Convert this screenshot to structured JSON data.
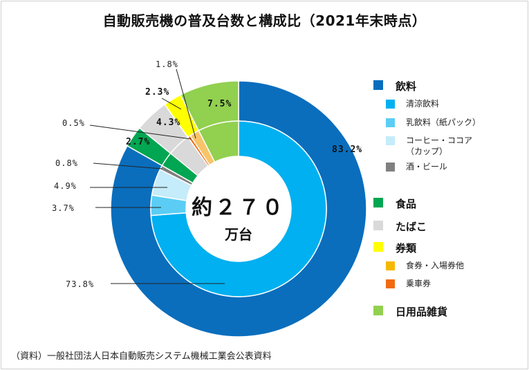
{
  "chart_data": {
    "type": "pie",
    "variant": "double-donut",
    "title": "自動販売機の普及台数と構成比（2021年末時点）",
    "center_label": {
      "value": "約２７０",
      "unit": "万台"
    },
    "outer_ring": [
      {
        "name": "飲料",
        "value": 83.2,
        "label": "83.2%",
        "color": "#0a6ebd"
      },
      {
        "name": "食品",
        "value": 2.7,
        "label": "2.7%",
        "color": "#00a651"
      },
      {
        "name": "たばこ",
        "value": 4.3,
        "label": "4.3%",
        "color": "#d9d9d9"
      },
      {
        "name": "券類",
        "value": 2.3,
        "label": "2.3%",
        "color": "#ffff00"
      },
      {
        "name": "日用品雑貨",
        "value": 7.5,
        "label": "7.5%",
        "color": "#92d050"
      }
    ],
    "inner_ring": [
      {
        "name": "清涼飲料",
        "value": 73.8,
        "label": "73.8%",
        "color": "#00b0f0"
      },
      {
        "name": "乳飲料（紙パック）",
        "value": 3.7,
        "label": "3.7%",
        "color": "#5bcdf5"
      },
      {
        "name": "コーヒー・ココア（カップ）",
        "value": 4.9,
        "label": "4.9%",
        "color": "#c5ecfa"
      },
      {
        "name": "酒・ビール",
        "value": 0.8,
        "label": "0.8%",
        "color": "#808080"
      },
      {
        "name": "食品",
        "value": 2.7,
        "label": "",
        "color": "#00a651"
      },
      {
        "name": "たばこ",
        "value": 4.3,
        "label": "",
        "color": "#d9d9d9"
      },
      {
        "name": "乗車券",
        "value": 0.5,
        "label": "0.5%",
        "color": "#f26b0f"
      },
      {
        "name": "食券・入場券他",
        "value": 1.8,
        "label": "1.8%",
        "color": "#f8c46a"
      },
      {
        "name": "日用品雑貨",
        "value": 7.5,
        "label": "",
        "color": "#92d050"
      }
    ],
    "legend": {
      "placement": "right",
      "items": [
        {
          "label": "飲料",
          "color": "#0a6ebd",
          "level": "main"
        },
        {
          "label": "清涼飲料",
          "color": "#00b0f0",
          "level": "sub"
        },
        {
          "label": "乳飲料（紙パック）",
          "color": "#5bcdf5",
          "level": "sub"
        },
        {
          "label": "コーヒー・ココア\n（カップ）",
          "color": "#c5ecfa",
          "level": "sub"
        },
        {
          "label": "酒・ビール",
          "color": "#808080",
          "level": "sub"
        },
        {
          "label": "食品",
          "color": "#00a651",
          "level": "main"
        },
        {
          "label": "たばこ",
          "color": "#d9d9d9",
          "level": "main"
        },
        {
          "label": "券類",
          "color": "#ffff00",
          "level": "main"
        },
        {
          "label": "食券・入場券他",
          "color": "#f5b800",
          "level": "sub"
        },
        {
          "label": "乗車券",
          "color": "#f26b0f",
          "level": "sub"
        },
        {
          "label": "日用品雑貨",
          "color": "#92d050",
          "level": "main"
        }
      ]
    }
  },
  "source": "（資料）一般社団法人日本自動販売システム機械工業会公表資料"
}
